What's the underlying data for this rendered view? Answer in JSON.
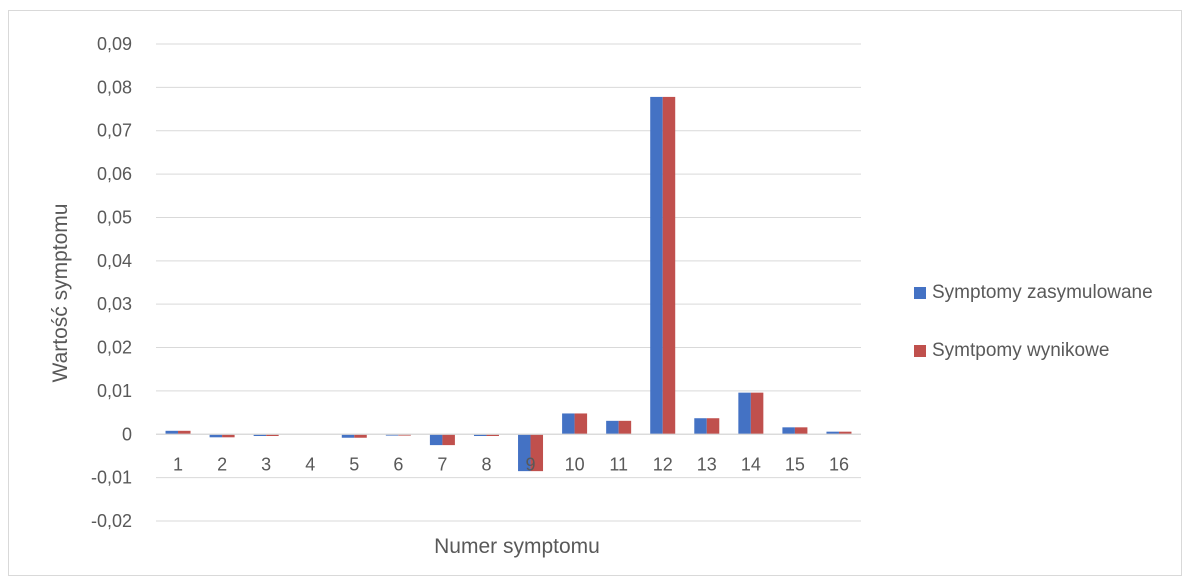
{
  "chart_data": {
    "type": "bar",
    "title": "",
    "xlabel": "Numer symptomu",
    "ylabel": "Wartość symptomu",
    "ylim": [
      -0.02,
      0.09
    ],
    "yticks": [
      -0.02,
      -0.01,
      0,
      0.01,
      0.02,
      0.03,
      0.04,
      0.05,
      0.06,
      0.07,
      0.08,
      0.09
    ],
    "ytick_labels": [
      "-0,02",
      "-0,01",
      "0",
      "0,01",
      "0,02",
      "0,03",
      "0,04",
      "0,05",
      "0,06",
      "0,07",
      "0,08",
      "0,09"
    ],
    "categories": [
      "1",
      "2",
      "3",
      "4",
      "5",
      "6",
      "7",
      "8",
      "9",
      "10",
      "11",
      "12",
      "13",
      "14",
      "15",
      "16"
    ],
    "series": [
      {
        "name": "Symptomy zasymulowane",
        "color": "#4472c4",
        "values": [
          0.0008,
          -0.0007,
          -0.0004,
          0,
          -0.0008,
          -0.0003,
          -0.0025,
          -0.0004,
          -0.0085,
          0.0048,
          0.0031,
          0.0778,
          0.0037,
          0.0096,
          0.0016,
          0.0006
        ]
      },
      {
        "name": "Symtpomy wynikowe",
        "color": "#c0504d",
        "values": [
          0.0008,
          -0.0007,
          -0.0004,
          0,
          -0.0008,
          -0.0003,
          -0.0025,
          -0.0004,
          -0.0085,
          0.0048,
          0.0031,
          0.0778,
          0.0037,
          0.0096,
          0.0016,
          0.0006
        ]
      }
    ],
    "grid": true,
    "legend_position": "right"
  }
}
